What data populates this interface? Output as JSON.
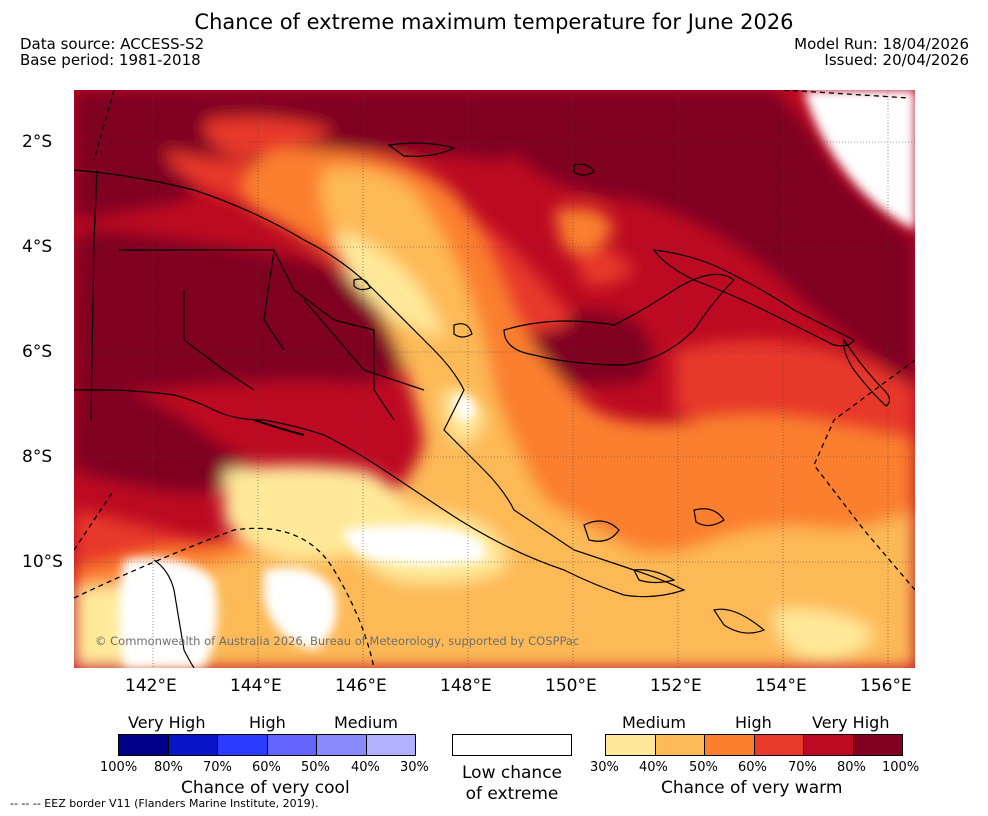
{
  "header": {
    "title": "Chance of extreme maximum temperature for June 2026",
    "data_source": "Data source: ACCESS-S2",
    "base_period": "Base period: 1981-2018",
    "model_run": "Model Run: 18/04/2026",
    "issued": "Issued: 20/04/2026"
  },
  "map": {
    "region": "Papua New Guinea",
    "lat_labels": [
      "2°S",
      "4°S",
      "6°S",
      "8°S",
      "10°S"
    ],
    "lon_labels": [
      "142°E",
      "144°E",
      "146°E",
      "148°E",
      "150°E",
      "152°E",
      "154°E",
      "156°E"
    ],
    "copyright": "© Commonwealth of Australia 2026, Bureau of Meteorology, supported by COSPPac"
  },
  "legend": {
    "cool": {
      "categories": [
        "Very High",
        "High",
        "Medium"
      ],
      "percents": [
        "100%",
        "80%",
        "70%",
        "60%",
        "50%",
        "40%",
        "30%"
      ],
      "colors": [
        "#00008b",
        "#0a14c8",
        "#2a3cff",
        "#6464ff",
        "#8a8aff",
        "#b0b0ff"
      ],
      "caption": "Chance of very cool"
    },
    "neutral": {
      "line1": "Low chance",
      "line2": "of extreme"
    },
    "warm": {
      "categories": [
        "Medium",
        "High",
        "Very High"
      ],
      "percents": [
        "30%",
        "40%",
        "50%",
        "60%",
        "70%",
        "80%",
        "100%"
      ],
      "colors": [
        "#ffe999",
        "#fdb957",
        "#fb7f2e",
        "#e8392a",
        "#bd0a22",
        "#800020"
      ],
      "caption": "Chance of very warm"
    },
    "eez_note": "-- -- -- EEZ border V11 (Flanders Marine Institute, 2019)."
  }
}
